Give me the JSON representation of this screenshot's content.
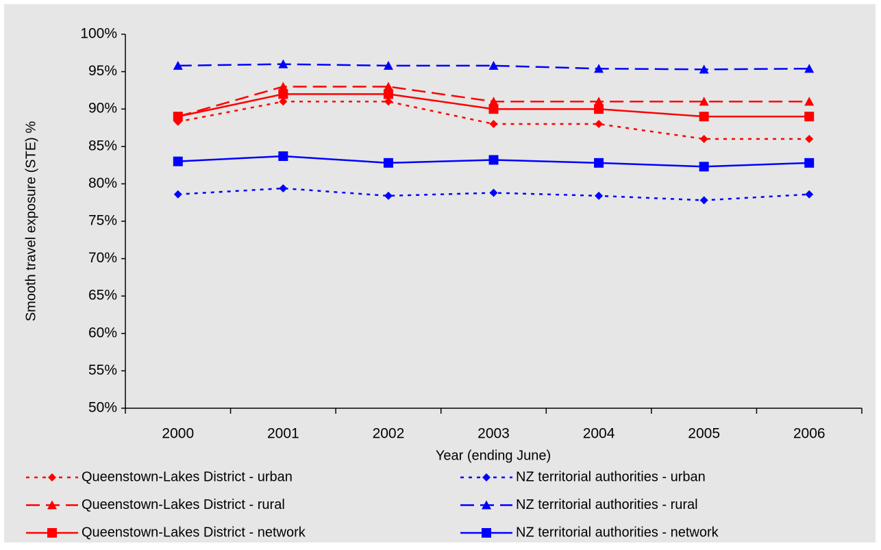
{
  "chart_data": {
    "type": "line",
    "x_label": "Year (ending June)",
    "y_label": "Smooth travel exposure (STE) %",
    "categories": [
      "2000",
      "2001",
      "2002",
      "2003",
      "2004",
      "2005",
      "2006"
    ],
    "ylim": [
      50,
      100
    ],
    "yticks": [
      {
        "value": 50,
        "label": "50%"
      },
      {
        "value": 55,
        "label": "55%"
      },
      {
        "value": 60,
        "label": "60%"
      },
      {
        "value": 65,
        "label": "65%"
      },
      {
        "value": 70,
        "label": "70%"
      },
      {
        "value": 75,
        "label": "75%"
      },
      {
        "value": 80,
        "label": "80%"
      },
      {
        "value": 85,
        "label": "85%"
      },
      {
        "value": 90,
        "label": "90%"
      },
      {
        "value": 95,
        "label": "95%"
      },
      {
        "value": 100,
        "label": "100%"
      }
    ],
    "legend": "bottom",
    "series": [
      {
        "name": "Queenstown-Lakes District - urban",
        "color": "#ff0000",
        "line_style": "dotted",
        "marker": "diamond",
        "values": [
          88.3,
          91,
          91,
          88,
          88,
          86,
          86
        ]
      },
      {
        "name": "Queenstown-Lakes District - rural",
        "color": "#ff0000",
        "line_style": "dashed",
        "marker": "triangle",
        "values": [
          89,
          93,
          93,
          91,
          91,
          91,
          91
        ]
      },
      {
        "name": "Queenstown-Lakes District - network",
        "color": "#ff0000",
        "line_style": "solid",
        "marker": "square",
        "values": [
          89,
          92,
          92,
          90,
          90,
          89,
          89
        ]
      },
      {
        "name": "NZ territorial authorities - urban",
        "color": "#0000ff",
        "line_style": "dotted",
        "marker": "diamond",
        "values": [
          78.6,
          79.4,
          78.4,
          78.8,
          78.4,
          77.8,
          78.6
        ]
      },
      {
        "name": "NZ territorial authorities - rural",
        "color": "#0000ff",
        "line_style": "dashed",
        "marker": "triangle",
        "values": [
          95.8,
          96.0,
          95.8,
          95.8,
          95.4,
          95.3,
          95.4
        ]
      },
      {
        "name": "NZ territorial authorities - network",
        "color": "#0000ff",
        "line_style": "solid",
        "marker": "square",
        "values": [
          83.0,
          83.7,
          82.8,
          83.2,
          82.8,
          82.3,
          82.8
        ]
      }
    ]
  }
}
